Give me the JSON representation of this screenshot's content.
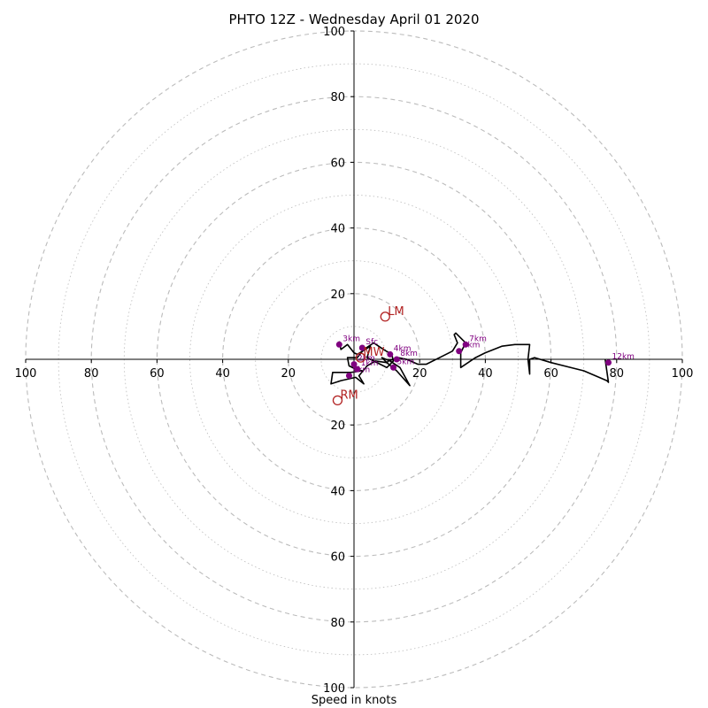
{
  "chart_data": {
    "type": "hodograph",
    "title": "PHTO 12Z - Wednesday April 01 2020",
    "xlabel": "Speed in knots",
    "range": 100,
    "ring_major_step": 20,
    "ring_minor_step": 10,
    "ticks_x": [
      "100",
      "80",
      "60",
      "40",
      "20",
      "",
      "20",
      "40",
      "60",
      "80",
      "100"
    ],
    "ticks_y_upper": [
      "100",
      "80",
      "60",
      "40",
      "20"
    ],
    "ticks_y_lower": [
      "20",
      "40",
      "60",
      "80",
      "100"
    ],
    "colors": {
      "trace": "#000000",
      "height_marker": "#800080",
      "storm_motion": "#b22222",
      "ring": "#bbbbbb"
    },
    "trace": [
      [
        -4.5,
        5.5
      ],
      [
        -4.0,
        3.0
      ],
      [
        -2.0,
        4.5
      ],
      [
        0.0,
        2.0
      ],
      [
        1.0,
        1.5
      ],
      [
        5.0,
        4.0
      ],
      [
        4.0,
        0.5
      ],
      [
        8.0,
        -1.5
      ],
      [
        10.0,
        -2.5
      ],
      [
        12.0,
        -0.5
      ],
      [
        11.5,
        1.5
      ],
      [
        9.0,
        3.0
      ],
      [
        6.0,
        5.0
      ],
      [
        4.5,
        4.0
      ],
      [
        3.0,
        3.0
      ],
      [
        1.0,
        0.5
      ],
      [
        -2.0,
        0.5
      ],
      [
        -1.5,
        -2.0
      ],
      [
        0.5,
        -3.0
      ],
      [
        2.5,
        -3.5
      ],
      [
        -1.0,
        -4.0
      ],
      [
        -6.5,
        -4.0
      ],
      [
        -7.0,
        -7.5
      ],
      [
        -4.0,
        -6.5
      ],
      [
        0.5,
        -5.5
      ],
      [
        3.0,
        -7.5
      ],
      [
        1.5,
        -5.0
      ],
      [
        4.0,
        -2.0
      ],
      [
        6.5,
        -0.5
      ],
      [
        10.0,
        -1.0
      ],
      [
        8.5,
        0.5
      ],
      [
        11.0,
        -0.5
      ],
      [
        14.0,
        -2.5
      ],
      [
        17.0,
        -8.0
      ],
      [
        13.0,
        -3.5
      ],
      [
        10.0,
        -1.0
      ],
      [
        10.5,
        -0.5
      ],
      [
        13.5,
        0.5
      ],
      [
        16.0,
        0.0
      ],
      [
        19.5,
        -1.5
      ],
      [
        22.0,
        -1.5
      ],
      [
        27.0,
        1.0
      ],
      [
        30.0,
        2.5
      ],
      [
        31.5,
        5.0
      ],
      [
        30.5,
        7.5
      ],
      [
        31.0,
        8.0
      ],
      [
        34.0,
        5.0
      ],
      [
        32.5,
        2.0
      ],
      [
        32.5,
        -2.5
      ],
      [
        37.0,
        0.5
      ],
      [
        40.0,
        2.0
      ],
      [
        45.0,
        4.0
      ],
      [
        49.0,
        4.5
      ],
      [
        53.5,
        4.5
      ],
      [
        53.0,
        0.0
      ],
      [
        53.5,
        -4.5
      ],
      [
        53.5,
        0.0
      ],
      [
        55.0,
        0.5
      ],
      [
        60.0,
        -1.0
      ],
      [
        70.0,
        -3.5
      ],
      [
        77.0,
        -6.5
      ],
      [
        77.5,
        -7.0
      ],
      [
        76.5,
        0.0
      ]
    ],
    "height_markers": [
      {
        "label": "Sfc",
        "u": 2.5,
        "v": 3.5
      },
      {
        "label": "1km",
        "u": 1.0,
        "v": -3.0
      },
      {
        "label": "2km",
        "u": 0.0,
        "v": -1.5
      },
      {
        "label": "3km",
        "u": -4.5,
        "v": 4.5
      },
      {
        "label": "4km",
        "u": 11.0,
        "v": 1.5
      },
      {
        "label": "5km",
        "u": 12.0,
        "v": -2.5
      },
      {
        "label": "6km",
        "u": 32.0,
        "v": 2.5
      },
      {
        "label": "7km",
        "u": 34.0,
        "v": 4.5
      },
      {
        "label": "8km",
        "u": 13.0,
        "v": 0.0
      },
      {
        "label": "9km",
        "u": -1.5,
        "v": -5.0
      },
      {
        "label": "12km",
        "u": 77.5,
        "v": -1.0
      }
    ],
    "storm_motions": [
      {
        "label": "LM",
        "u": 9.5,
        "v": 13.0
      },
      {
        "label": "MW",
        "u": 2.0,
        "v": 0.5
      },
      {
        "label": "RM",
        "u": -5.0,
        "v": -12.5
      }
    ]
  }
}
